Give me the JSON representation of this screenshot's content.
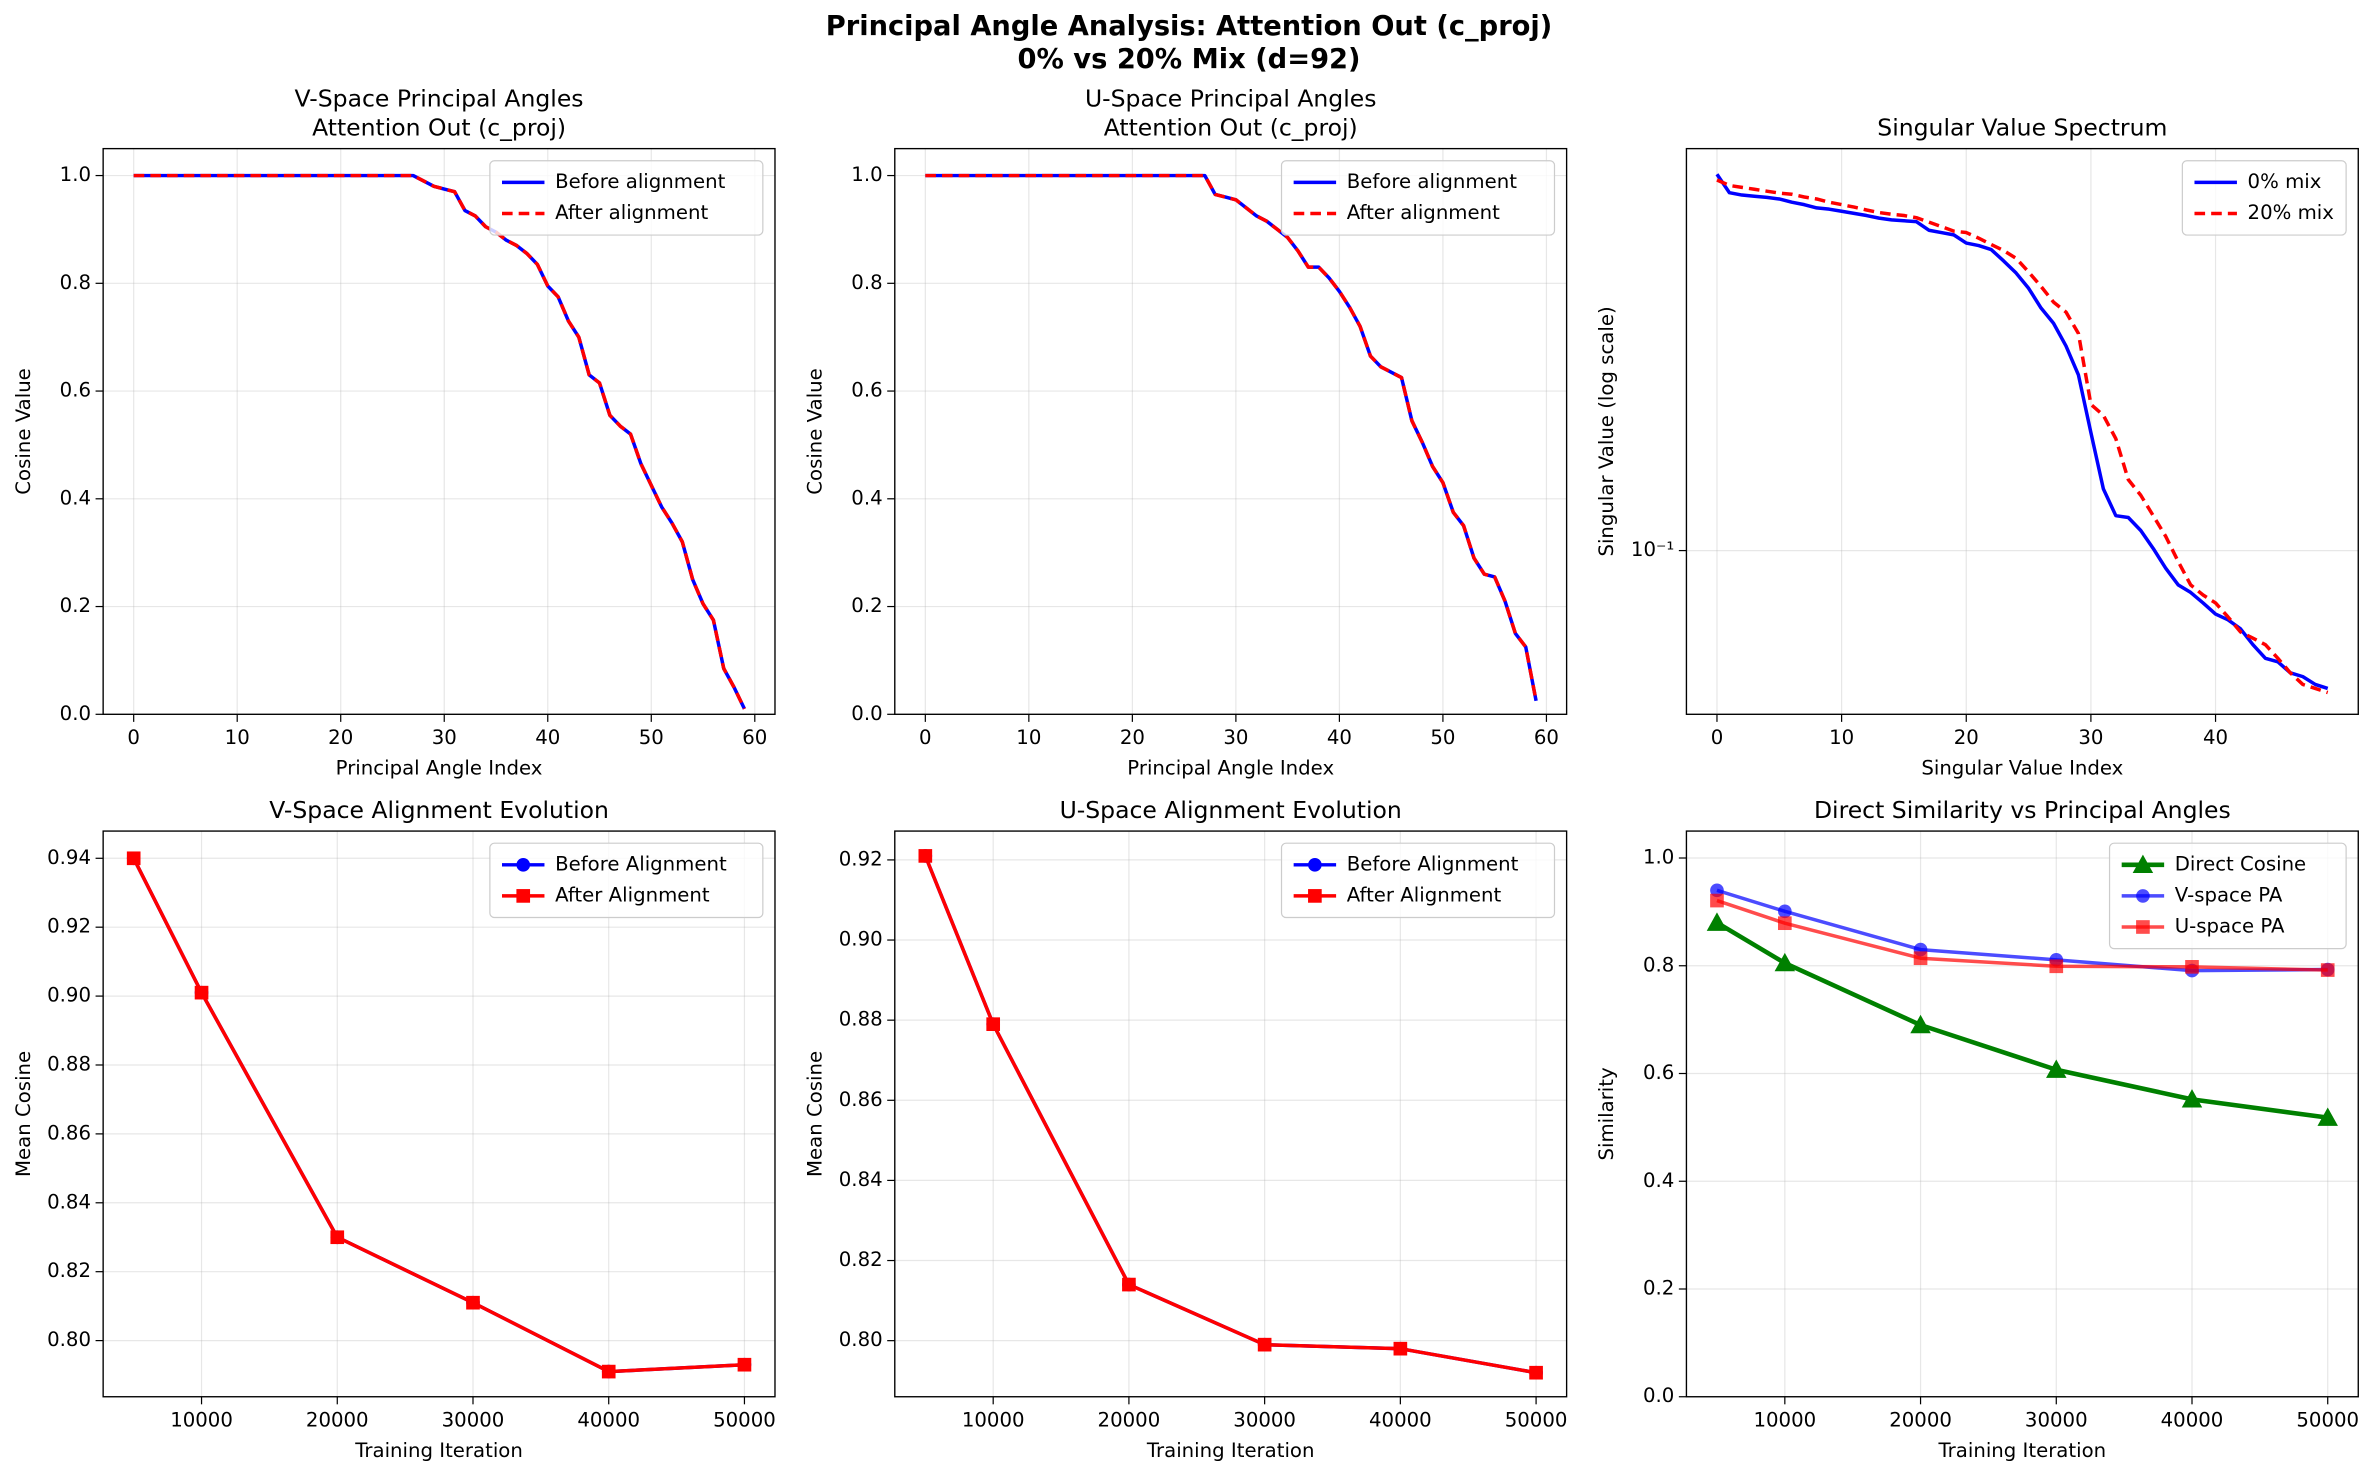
{
  "title": "Principal Angle Analysis: Attention Out (c_proj)",
  "subtitle": "0% vs 20% Mix (d=92)",
  "chart_data": [
    {
      "type": "line",
      "title": "V-Space Principal Angles",
      "subtitle": "Attention Out (c_proj)",
      "xlabel": "Principal Angle Index",
      "ylabel": "Cosine Value",
      "x": [
        0,
        1,
        2,
        3,
        4,
        5,
        6,
        7,
        8,
        9,
        10,
        11,
        12,
        13,
        14,
        15,
        16,
        17,
        18,
        19,
        20,
        21,
        22,
        23,
        24,
        25,
        26,
        27,
        28,
        29,
        30,
        31,
        32,
        33,
        34,
        35,
        36,
        37,
        38,
        39,
        40,
        41,
        42,
        43,
        44,
        45,
        46,
        47,
        48,
        49,
        50,
        51,
        52,
        53,
        54,
        55,
        56,
        57,
        58,
        59
      ],
      "series": [
        {
          "name": "Before alignment",
          "color": "#0000ff",
          "linestyle": "solid",
          "values": [
            1,
            1,
            1,
            1,
            1,
            1,
            1,
            1,
            1,
            1,
            1,
            1,
            1,
            1,
            1,
            1,
            1,
            1,
            1,
            1,
            1,
            1,
            1,
            1,
            1,
            1,
            1,
            1,
            0.99,
            0.98,
            0.975,
            0.97,
            0.935,
            0.925,
            0.905,
            0.895,
            0.88,
            0.87,
            0.855,
            0.835,
            0.795,
            0.775,
            0.73,
            0.7,
            0.63,
            0.615,
            0.555,
            0.535,
            0.52,
            0.465,
            0.425,
            0.385,
            0.355,
            0.32,
            0.25,
            0.205,
            0.175,
            0.085,
            0.05,
            0.01
          ]
        },
        {
          "name": "After alignment",
          "color": "#ff0000",
          "linestyle": "dashed",
          "values": [
            1,
            1,
            1,
            1,
            1,
            1,
            1,
            1,
            1,
            1,
            1,
            1,
            1,
            1,
            1,
            1,
            1,
            1,
            1,
            1,
            1,
            1,
            1,
            1,
            1,
            1,
            1,
            1,
            0.99,
            0.98,
            0.975,
            0.97,
            0.935,
            0.925,
            0.905,
            0.895,
            0.88,
            0.87,
            0.855,
            0.835,
            0.795,
            0.775,
            0.73,
            0.7,
            0.63,
            0.615,
            0.555,
            0.535,
            0.52,
            0.465,
            0.425,
            0.385,
            0.355,
            0.32,
            0.25,
            0.205,
            0.175,
            0.085,
            0.05,
            0.01
          ]
        }
      ],
      "xlim": [
        -2.95,
        61.95
      ],
      "xticks": [
        0,
        10,
        20,
        30,
        40,
        50,
        60
      ],
      "ylim": [
        0,
        1.05
      ],
      "yticks": [
        {
          "value": 0,
          "label": "0.0"
        },
        0.2,
        0.4,
        0.6,
        0.8,
        {
          "value": 1,
          "label": "1.0"
        }
      ],
      "grid": true,
      "legend": "upper right"
    },
    {
      "type": "line",
      "title": "U-Space Principal Angles",
      "subtitle": "Attention Out (c_proj)",
      "xlabel": "Principal Angle Index",
      "ylabel": "Cosine Value",
      "x": [
        0,
        1,
        2,
        3,
        4,
        5,
        6,
        7,
        8,
        9,
        10,
        11,
        12,
        13,
        14,
        15,
        16,
        17,
        18,
        19,
        20,
        21,
        22,
        23,
        24,
        25,
        26,
        27,
        28,
        29,
        30,
        31,
        32,
        33,
        34,
        35,
        36,
        37,
        38,
        39,
        40,
        41,
        42,
        43,
        44,
        45,
        46,
        47,
        48,
        49,
        50,
        51,
        52,
        53,
        54,
        55,
        56,
        57,
        58,
        59
      ],
      "series": [
        {
          "name": "Before alignment",
          "color": "#0000ff",
          "linestyle": "solid",
          "values": [
            1,
            1,
            1,
            1,
            1,
            1,
            1,
            1,
            1,
            1,
            1,
            1,
            1,
            1,
            1,
            1,
            1,
            1,
            1,
            1,
            1,
            1,
            1,
            1,
            1,
            1,
            1,
            1,
            0.965,
            0.96,
            0.955,
            0.94,
            0.925,
            0.915,
            0.9,
            0.885,
            0.86,
            0.83,
            0.83,
            0.81,
            0.785,
            0.755,
            0.72,
            0.665,
            0.645,
            0.635,
            0.625,
            0.545,
            0.505,
            0.46,
            0.43,
            0.375,
            0.35,
            0.29,
            0.26,
            0.255,
            0.21,
            0.15,
            0.125,
            0.025
          ]
        },
        {
          "name": "After alignment",
          "color": "#ff0000",
          "linestyle": "dashed",
          "values": [
            1,
            1,
            1,
            1,
            1,
            1,
            1,
            1,
            1,
            1,
            1,
            1,
            1,
            1,
            1,
            1,
            1,
            1,
            1,
            1,
            1,
            1,
            1,
            1,
            1,
            1,
            1,
            1,
            0.965,
            0.96,
            0.955,
            0.94,
            0.925,
            0.915,
            0.9,
            0.885,
            0.86,
            0.83,
            0.83,
            0.81,
            0.785,
            0.755,
            0.72,
            0.665,
            0.645,
            0.635,
            0.625,
            0.545,
            0.505,
            0.46,
            0.43,
            0.375,
            0.35,
            0.29,
            0.26,
            0.255,
            0.21,
            0.15,
            0.125,
            0.025
          ]
        }
      ],
      "xlim": [
        -2.95,
        61.95
      ],
      "xticks": [
        0,
        10,
        20,
        30,
        40,
        50,
        60
      ],
      "ylim": [
        0,
        1.05
      ],
      "yticks": [
        {
          "value": 0,
          "label": "0.0"
        },
        0.2,
        0.4,
        0.6,
        0.8,
        {
          "value": 1,
          "label": "1.0"
        }
      ],
      "grid": true,
      "legend": "upper right"
    },
    {
      "type": "line",
      "title": "Singular Value Spectrum",
      "xlabel": "Singular Value Index",
      "ylabel": "Singular Value (log scale)",
      "yscale": "log",
      "x": [
        0,
        1,
        2,
        3,
        4,
        5,
        6,
        7,
        8,
        9,
        10,
        11,
        12,
        13,
        14,
        15,
        16,
        17,
        18,
        19,
        20,
        21,
        22,
        23,
        24,
        25,
        26,
        27,
        28,
        29,
        30,
        31,
        32,
        33,
        34,
        35,
        36,
        37,
        38,
        39,
        40,
        41,
        42,
        43,
        44,
        45,
        46,
        47,
        48,
        49
      ],
      "series": [
        {
          "name": "0% mix",
          "color": "#0000ff",
          "linestyle": "solid",
          "values": [
            0.596,
            0.546,
            0.54,
            0.537,
            0.534,
            0.53,
            0.522,
            0.516,
            0.508,
            0.505,
            0.5,
            0.495,
            0.49,
            0.484,
            0.48,
            0.478,
            0.476,
            0.457,
            0.452,
            0.447,
            0.43,
            0.425,
            0.417,
            0.395,
            0.373,
            0.347,
            0.316,
            0.294,
            0.264,
            0.23,
            0.175,
            0.134,
            0.118,
            0.117,
            0.11,
            0.101,
            0.092,
            0.085,
            0.082,
            0.078,
            0.074,
            0.072,
            0.069,
            0.064,
            0.06,
            0.059,
            0.056,
            0.055,
            0.053,
            0.052
          ]
        },
        {
          "name": "20% mix",
          "color": "#ff0000",
          "linestyle": "dashed",
          "values": [
            0.58,
            0.565,
            0.56,
            0.555,
            0.55,
            0.545,
            0.542,
            0.535,
            0.53,
            0.522,
            0.516,
            0.51,
            0.503,
            0.497,
            0.493,
            0.49,
            0.485,
            0.475,
            0.465,
            0.455,
            0.452,
            0.44,
            0.427,
            0.415,
            0.4,
            0.375,
            0.35,
            0.325,
            0.31,
            0.28,
            0.2,
            0.19,
            0.17,
            0.14,
            0.13,
            0.118,
            0.107,
            0.095,
            0.085,
            0.081,
            0.078,
            0.073,
            0.068,
            0.066,
            0.064,
            0.06,
            0.056,
            0.053,
            0.052,
            0.051
          ]
        }
      ],
      "xlim": [
        -2.45,
        51.45
      ],
      "xticks": [
        0,
        10,
        20,
        30,
        40
      ],
      "ylim": [
        0.046,
        0.673
      ],
      "yticks": [
        {
          "value": 0.1,
          "label": "10⁻¹"
        }
      ],
      "grid": true,
      "legend": "upper right"
    },
    {
      "type": "line",
      "title": "V-Space Alignment Evolution",
      "xlabel": "Training Iteration",
      "ylabel": "Mean Cosine",
      "x": [
        5000,
        10000,
        20000,
        30000,
        40000,
        50000
      ],
      "series": [
        {
          "name": "Before Alignment",
          "color": "#0000ff",
          "linestyle": "solid",
          "marker": "circle",
          "values": [
            0.94,
            0.901,
            0.83,
            0.811,
            0.791,
            0.793
          ]
        },
        {
          "name": "After Alignment",
          "color": "#ff0000",
          "linestyle": "solid",
          "marker": "square",
          "values": [
            0.94,
            0.901,
            0.83,
            0.811,
            0.791,
            0.793
          ]
        }
      ],
      "xlim": [
        2750,
        52250
      ],
      "xticks": [
        10000,
        20000,
        30000,
        40000,
        50000
      ],
      "ylim": [
        0.7837,
        0.9479
      ],
      "yticks": [
        {
          "value": 0.8,
          "label": "0.80"
        },
        0.82,
        0.84,
        0.86,
        0.88,
        {
          "value": 0.9,
          "label": "0.90"
        },
        0.92,
        0.94
      ],
      "grid": true,
      "legend": "upper right"
    },
    {
      "type": "line",
      "title": "U-Space Alignment Evolution",
      "xlabel": "Training Iteration",
      "ylabel": "Mean Cosine",
      "x": [
        5000,
        10000,
        20000,
        30000,
        40000,
        50000
      ],
      "series": [
        {
          "name": "Before Alignment",
          "color": "#0000ff",
          "linestyle": "solid",
          "marker": "circle",
          "values": [
            0.921,
            0.879,
            0.814,
            0.799,
            0.798,
            0.792
          ]
        },
        {
          "name": "After Alignment",
          "color": "#ff0000",
          "linestyle": "solid",
          "marker": "square",
          "values": [
            0.921,
            0.879,
            0.814,
            0.799,
            0.798,
            0.792
          ]
        }
      ],
      "xlim": [
        2750,
        52250
      ],
      "xticks": [
        10000,
        20000,
        30000,
        40000,
        50000
      ],
      "ylim": [
        0.786,
        0.9272
      ],
      "yticks": [
        {
          "value": 0.8,
          "label": "0.80"
        },
        0.82,
        0.84,
        0.86,
        0.88,
        {
          "value": 0.9,
          "label": "0.90"
        },
        0.92
      ],
      "grid": true,
      "legend": "upper right"
    },
    {
      "type": "line",
      "title": "Direct Similarity vs Principal Angles",
      "xlabel": "Training Iteration",
      "ylabel": "Similarity",
      "x": [
        5000,
        10000,
        20000,
        30000,
        40000,
        50000
      ],
      "series": [
        {
          "name": "Direct Cosine",
          "color": "#008000",
          "linestyle": "solid",
          "marker": "triangle",
          "width": 3,
          "values": [
            0.88,
            0.805,
            0.69,
            0.607,
            0.552,
            0.518
          ]
        },
        {
          "name": "V-space PA",
          "color": "#0000ff",
          "linestyle": "solid",
          "marker": "circle",
          "alpha": 0.7,
          "values": [
            0.94,
            0.901,
            0.83,
            0.811,
            0.791,
            0.793
          ]
        },
        {
          "name": "U-space PA",
          "color": "#ff0000",
          "linestyle": "solid",
          "marker": "square",
          "alpha": 0.7,
          "values": [
            0.921,
            0.879,
            0.814,
            0.799,
            0.798,
            0.792
          ]
        }
      ],
      "xlim": [
        2750,
        52250
      ],
      "xticks": [
        10000,
        20000,
        30000,
        40000,
        50000
      ],
      "ylim": [
        0,
        1.05
      ],
      "yticks": [
        {
          "value": 0,
          "label": "0.0"
        },
        0.2,
        0.4,
        0.6,
        0.8,
        {
          "value": 1,
          "label": "1.0"
        }
      ],
      "grid": true,
      "legend": "upper right"
    }
  ]
}
